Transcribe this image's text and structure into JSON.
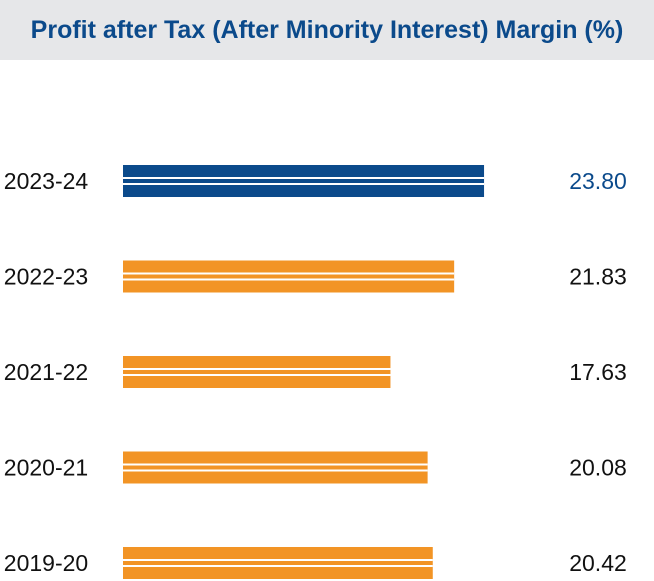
{
  "title": "Profit after Tax (After Minority Interest) Margin (%)",
  "colors": {
    "title": "#0b4a8b",
    "title_background": "#e6e7e9",
    "highlight_bar": "#0b4a8b",
    "bar": "#f29425",
    "highlight_value_text": "#0b4a8b",
    "value_text": "#111111"
  },
  "chart_data": {
    "type": "bar",
    "orientation": "horizontal",
    "title": "Profit after Tax (After Minority Interest) Margin (%)",
    "categories": [
      "2023-24",
      "2022-23",
      "2021-22",
      "2020-21",
      "2019-20"
    ],
    "values": [
      23.8,
      21.83,
      17.63,
      20.08,
      20.42
    ],
    "value_labels": [
      "23.80",
      "21.83",
      "17.63",
      "20.08",
      "20.42"
    ],
    "highlighted_category": "2023-24",
    "xlim": [
      0,
      26
    ],
    "grid": false,
    "legend": "none"
  }
}
